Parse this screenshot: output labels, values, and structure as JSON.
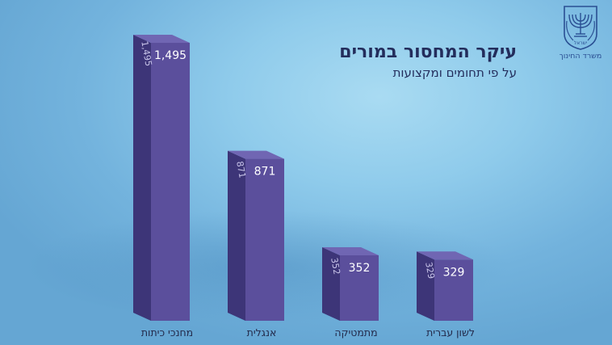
{
  "logo": {
    "icon": "menorah-emblem-icon",
    "emblem_text": "ישראל",
    "org_name": "משרד החינוך"
  },
  "chart_data": {
    "type": "bar",
    "title": "עיקר המחסור במורים",
    "subtitle": "על פי תחומים ומקצועות",
    "categories": [
      "מחנכי כיתות",
      "אנגלית",
      "מתמטיקה",
      "לשון עברית"
    ],
    "values": [
      1495,
      871,
      352,
      329
    ],
    "value_labels": [
      "1,495",
      "871",
      "352",
      "329"
    ],
    "ylim": [
      0,
      1495
    ],
    "grid": false,
    "legend": "none",
    "colors": {
      "bar_front": "#5b4f9c",
      "bar_side": "#3d3578",
      "bar_top": "#7066b3"
    }
  }
}
